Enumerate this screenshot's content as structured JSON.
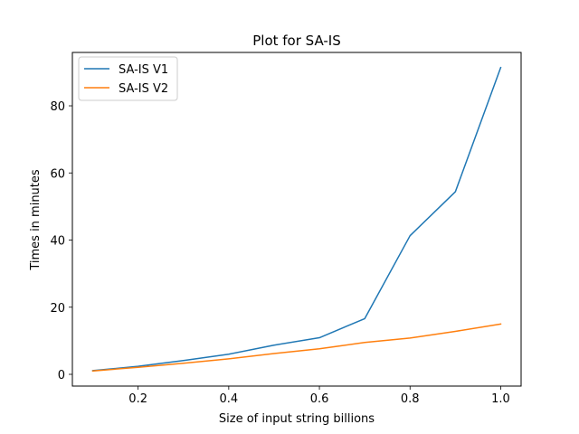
{
  "chart_data": {
    "type": "line",
    "title": "Plot for SA-IS",
    "xlabel": "Size of input string billions",
    "ylabel": "Times in minutes",
    "x": [
      0.1,
      0.2,
      0.3,
      0.4,
      0.5,
      0.6,
      0.7,
      0.8,
      0.9,
      1.0
    ],
    "xlim": [
      0.055,
      1.045
    ],
    "ylim": [
      -3.5,
      95.9
    ],
    "x_ticks": [
      0.2,
      0.4,
      0.6,
      0.8,
      1.0
    ],
    "x_tick_labels": [
      "0.2",
      "0.4",
      "0.6",
      "0.8",
      "1.0"
    ],
    "y_ticks": [
      0,
      20,
      40,
      60,
      80
    ],
    "y_tick_labels": [
      "0",
      "20",
      "40",
      "60",
      "80"
    ],
    "grid": false,
    "legend": "top-left",
    "series": [
      {
        "name": "SA-IS V1",
        "color": "#1f77b4",
        "values": [
          1.1,
          2.4,
          4.1,
          6.0,
          8.7,
          10.9,
          16.6,
          41.3,
          54.4,
          91.4
        ]
      },
      {
        "name": "SA-IS V2",
        "color": "#ff7f0e",
        "values": [
          1.0,
          2.1,
          3.3,
          4.6,
          6.2,
          7.6,
          9.5,
          10.8,
          12.8,
          15.0
        ]
      }
    ]
  }
}
